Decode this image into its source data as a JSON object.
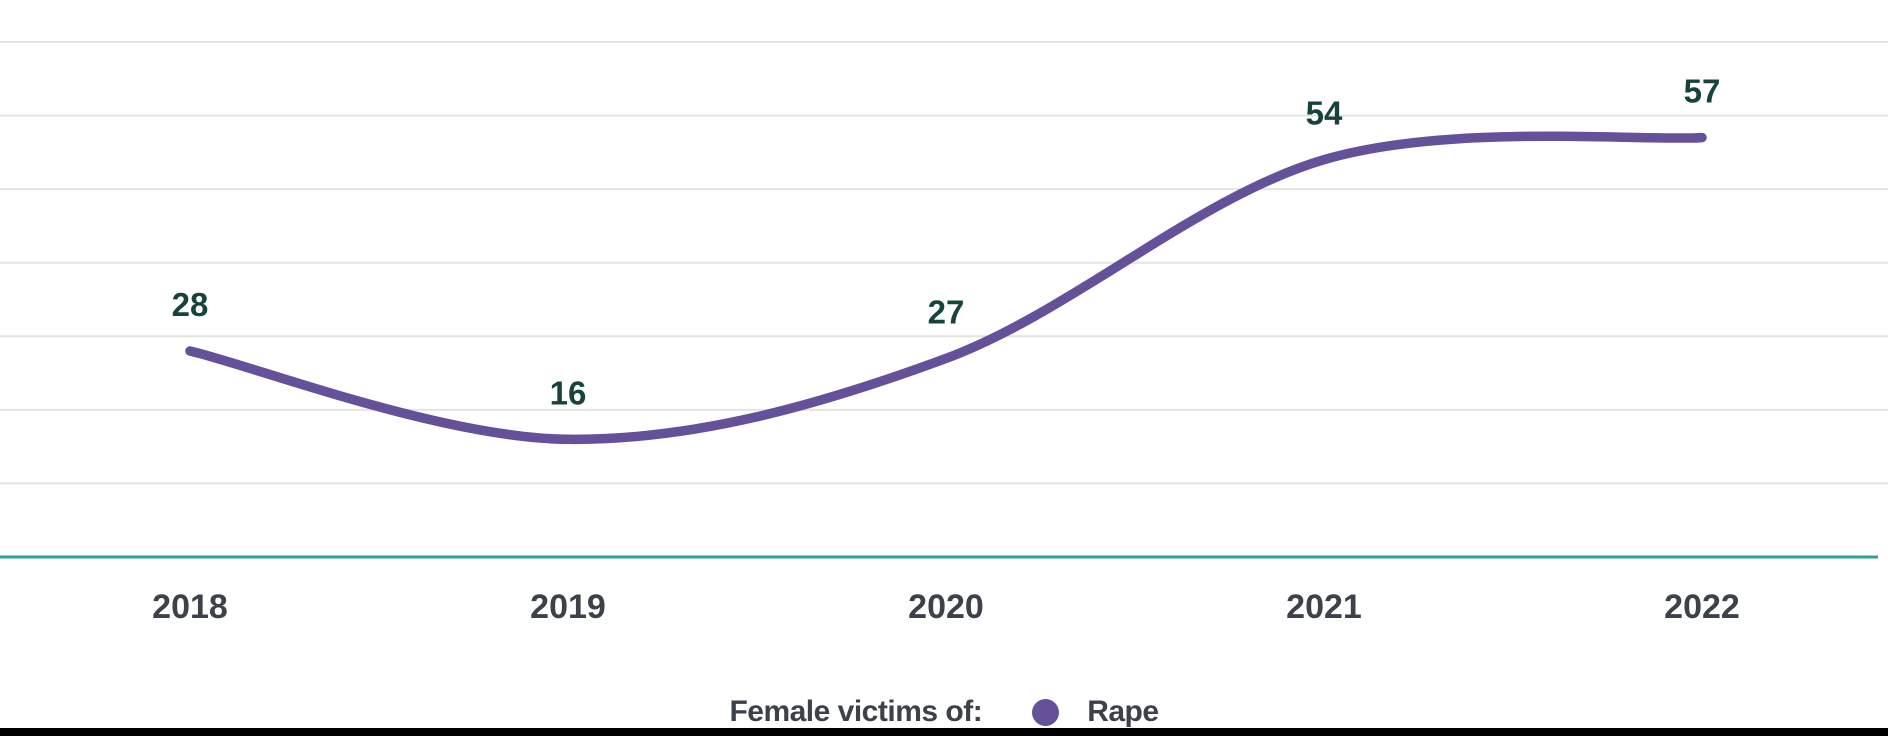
{
  "chart_data": {
    "type": "line",
    "categories": [
      "2018",
      "2019",
      "2020",
      "2021",
      "2022"
    ],
    "series": [
      {
        "name": "Rape",
        "values": [
          28,
          16,
          27,
          54,
          57
        ],
        "color": "#655199"
      }
    ],
    "value_labels": [
      "28",
      "16",
      "27",
      "54",
      "57"
    ],
    "ylim": [
      0,
      70
    ],
    "grid_step": 10,
    "grid": "horizontal",
    "legend_position": "bottom-center",
    "colors": {
      "grid": "#e4e4e4",
      "axis_line": "#2aa198",
      "value_label": "#18433c",
      "tick_label": "#3d424a",
      "series_line": "#655199"
    }
  },
  "legend": {
    "prefix": "Female victims of:",
    "items": [
      {
        "label": "Rape",
        "color": "#655199"
      }
    ]
  }
}
